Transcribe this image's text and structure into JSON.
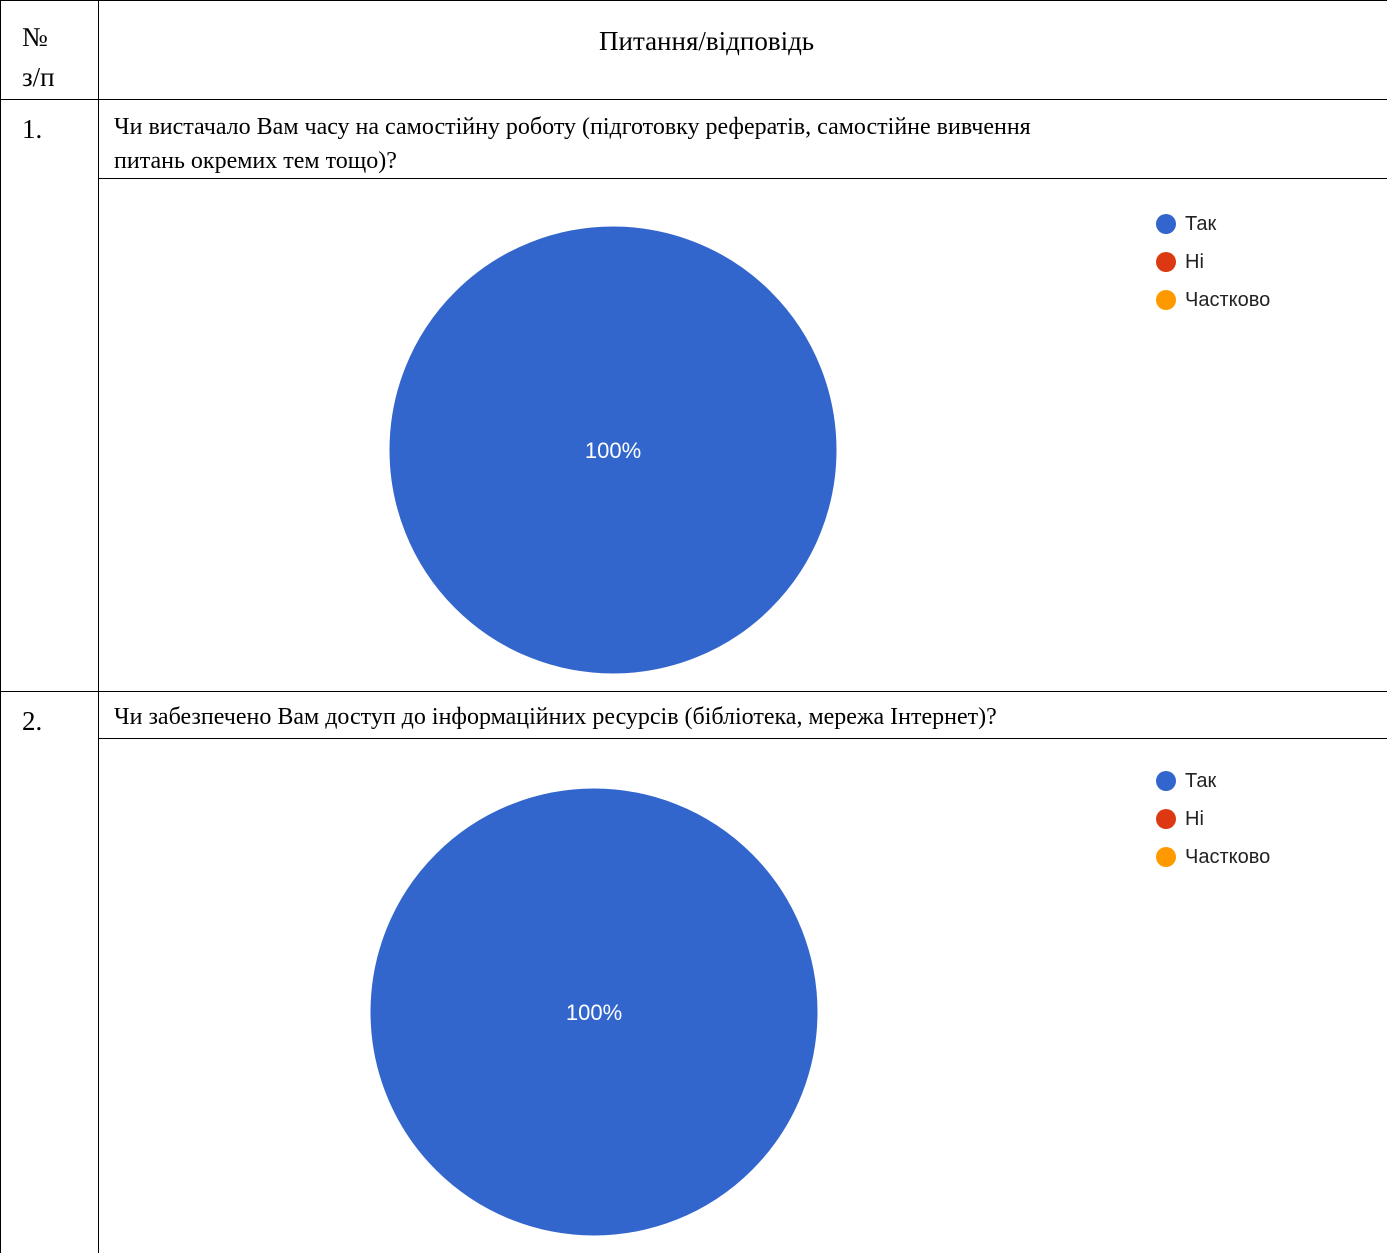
{
  "header": {
    "number_label_line1": "№",
    "number_label_line2": "з/п",
    "question_answer_label": "Питання/відповідь"
  },
  "rows": [
    {
      "number": "1.",
      "question_line1": "Чи вистачало Вам часу на самостійну роботу (підготовку рефератів, самостійне вивчення",
      "question_line2": "питань окремих тем тощо)?"
    },
    {
      "number": "2.",
      "question_line1": "Чи забезпечено Вам доступ до інформаційних ресурсів (бібліотека, мережа Інтернет)?"
    }
  ],
  "chart_data": [
    {
      "type": "pie",
      "categories": [
        "Так",
        "Ні",
        "Частково"
      ],
      "values": [
        100,
        0,
        0
      ],
      "slice_label": "100%",
      "colors": [
        "#3366cc",
        "#dc3912",
        "#ff9900"
      ],
      "legend": "top-right"
    },
    {
      "type": "pie",
      "categories": [
        "Так",
        "Ні",
        "Частково"
      ],
      "values": [
        100,
        0,
        0
      ],
      "slice_label": "100%",
      "colors": [
        "#3366cc",
        "#dc3912",
        "#ff9900"
      ],
      "legend": "top-right"
    }
  ]
}
